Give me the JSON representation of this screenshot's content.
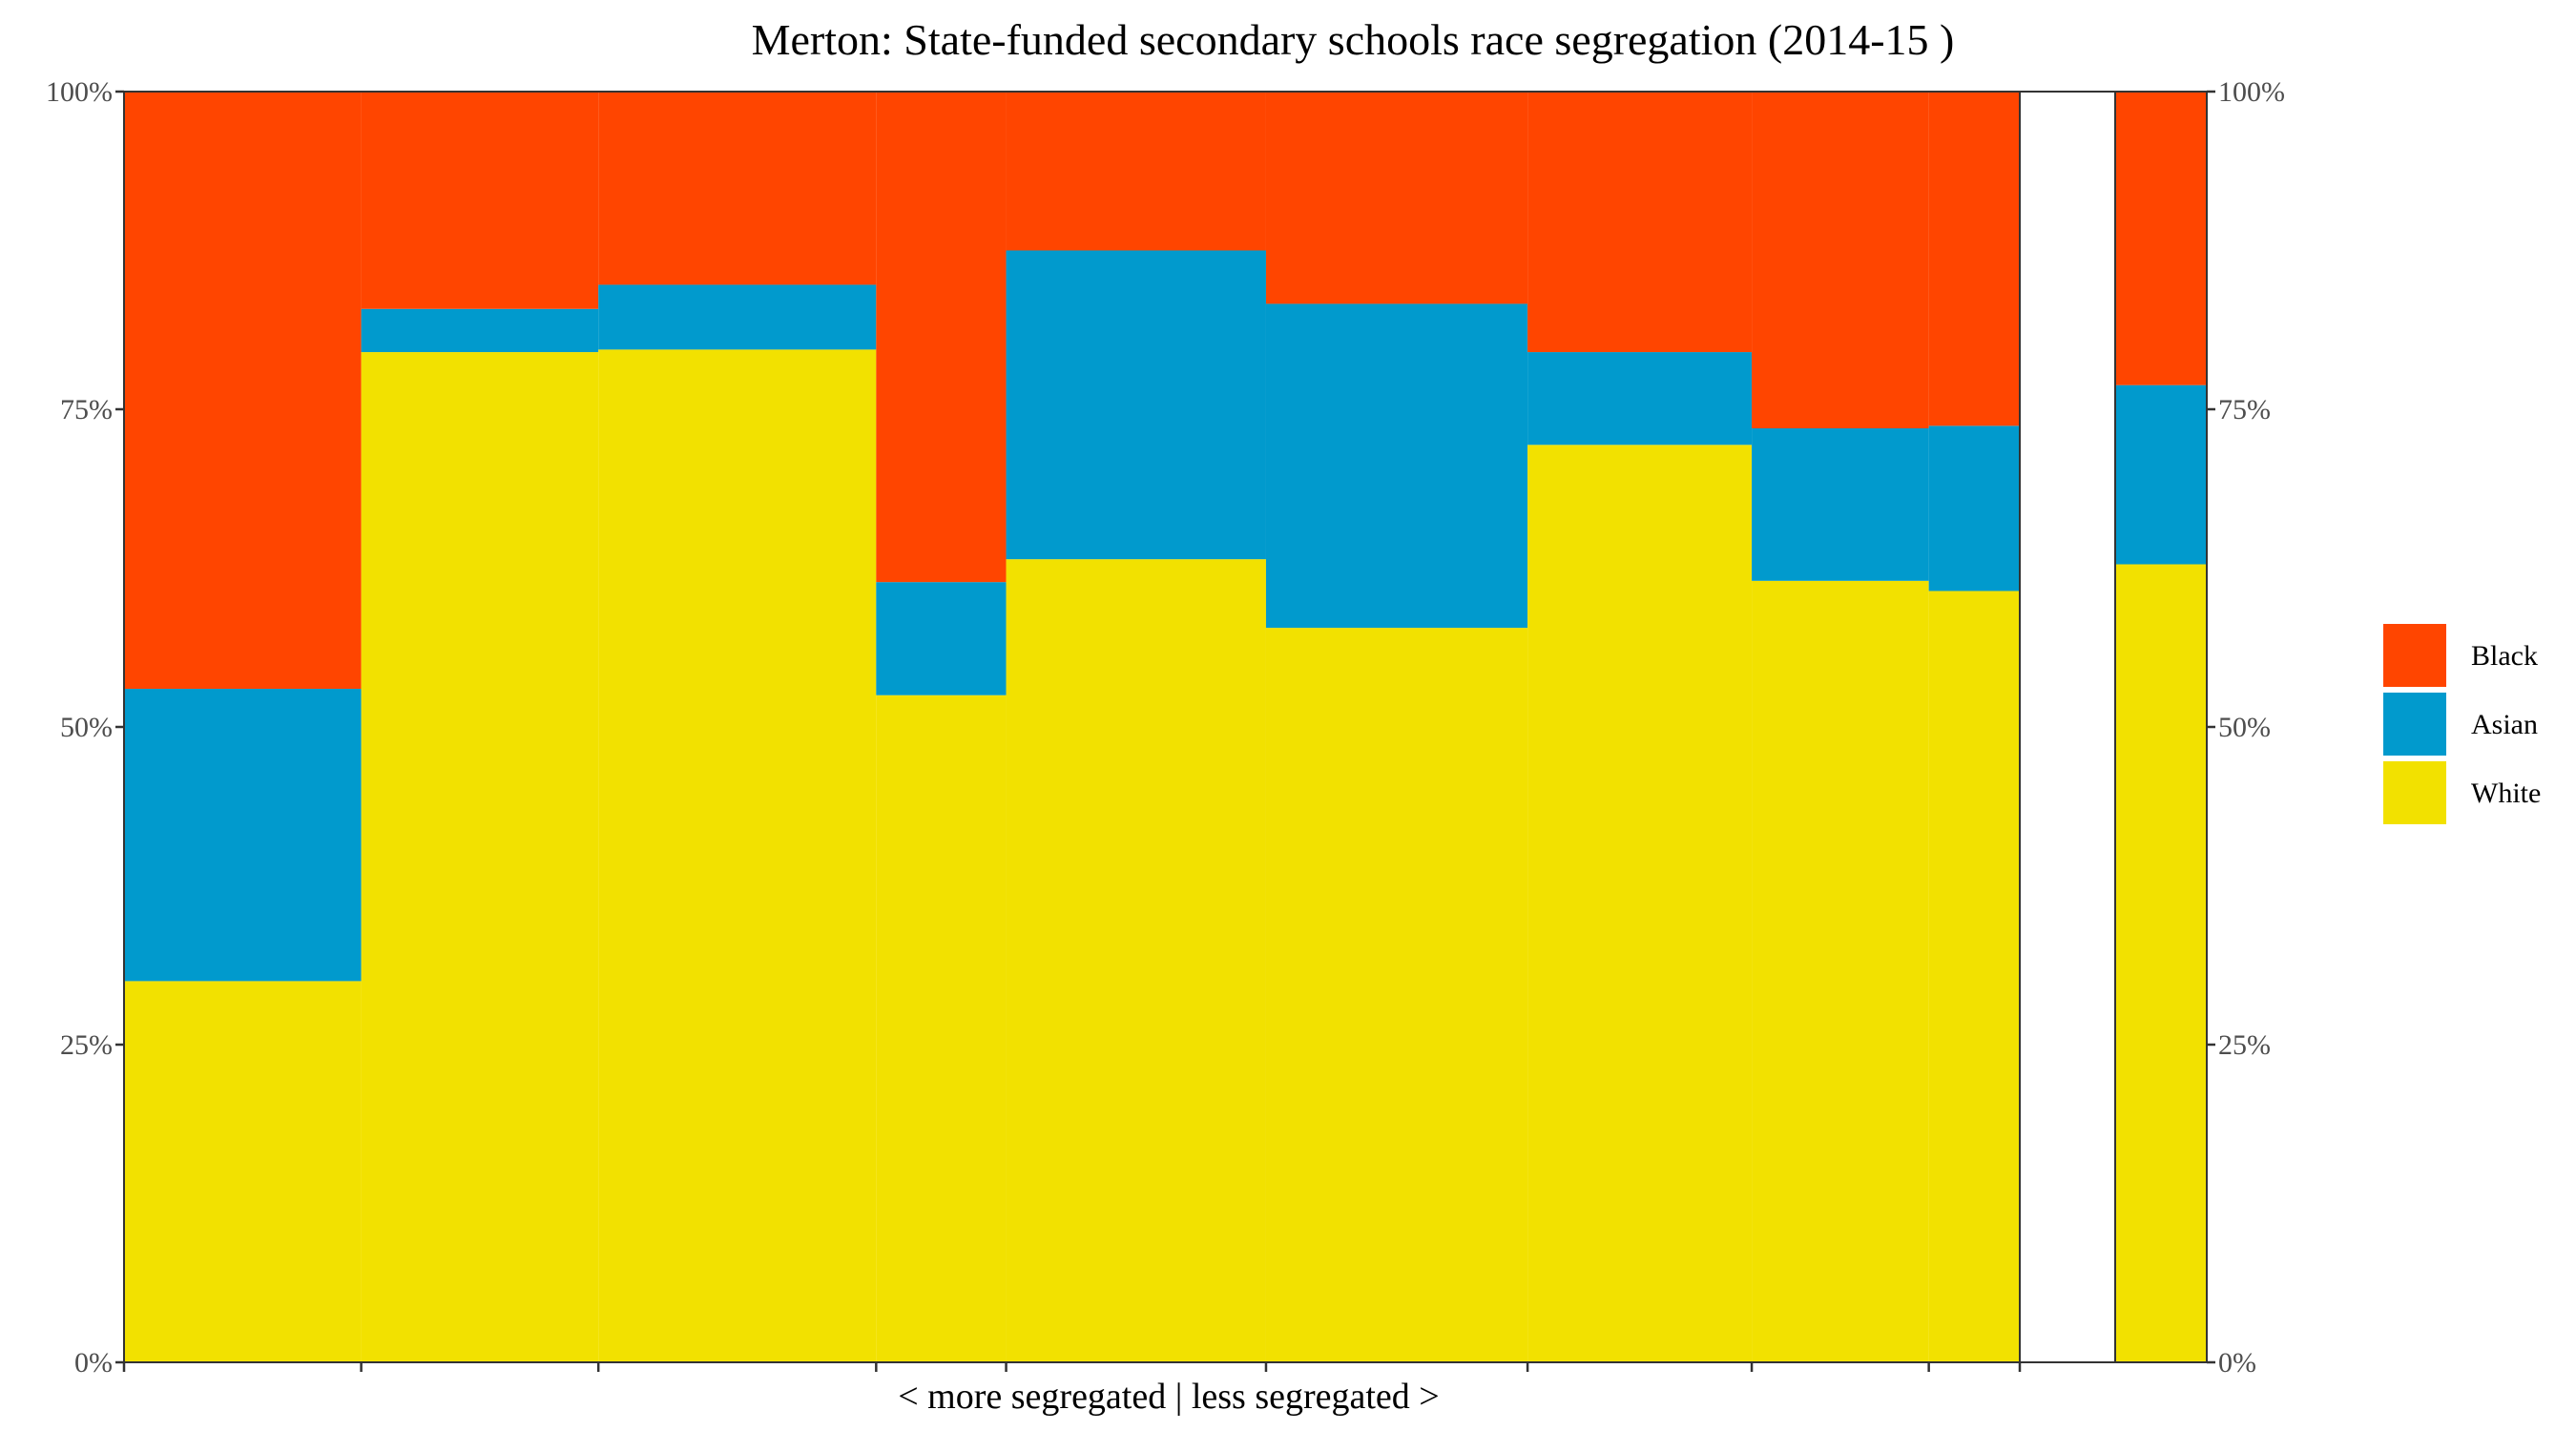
{
  "chart_data": {
    "type": "bar",
    "title": "Merton: State-funded secondary schools race segregation (2014-15 )",
    "xlabel": "< more segregated | less segregated >",
    "ylabel": "",
    "ylim": [
      0,
      100
    ],
    "yticks": [
      "0%",
      "25%",
      "50%",
      "75%",
      "100%"
    ],
    "stacking": "100% stacked, variable-width columns (width proportional to school size)",
    "series": [
      {
        "name": "White",
        "color": "#F2E100"
      },
      {
        "name": "Asian",
        "color": "#019ACD"
      },
      {
        "name": "Black",
        "color": "#FF4500"
      }
    ],
    "schools": [
      {
        "width": 146,
        "White": 30.0,
        "Asian": 23.0,
        "Black": 47.0
      },
      {
        "width": 146,
        "White": 79.5,
        "Asian": 3.4,
        "Black": 17.1
      },
      {
        "width": 171,
        "White": 79.7,
        "Asian": 5.1,
        "Black": 15.2
      },
      {
        "width": 80,
        "White": 52.5,
        "Asian": 8.9,
        "Black": 38.6
      },
      {
        "width": 160,
        "White": 63.2,
        "Asian": 24.3,
        "Black": 12.5
      },
      {
        "width": 161,
        "White": 57.8,
        "Asian": 25.5,
        "Black": 16.7
      },
      {
        "width": 138,
        "White": 72.2,
        "Asian": 7.3,
        "Black": 20.5
      },
      {
        "width": 109,
        "White": 61.5,
        "Asian": 12.0,
        "Black": 26.5
      },
      {
        "width": 56,
        "White": 60.7,
        "Asian": 13.0,
        "Black": 26.3
      }
    ],
    "overall": {
      "White": 62.8,
      "Asian": 14.1,
      "Black": 23.1
    },
    "legend": {
      "position": "right",
      "entries": [
        "Black",
        "Asian",
        "White"
      ]
    },
    "grid": false
  }
}
